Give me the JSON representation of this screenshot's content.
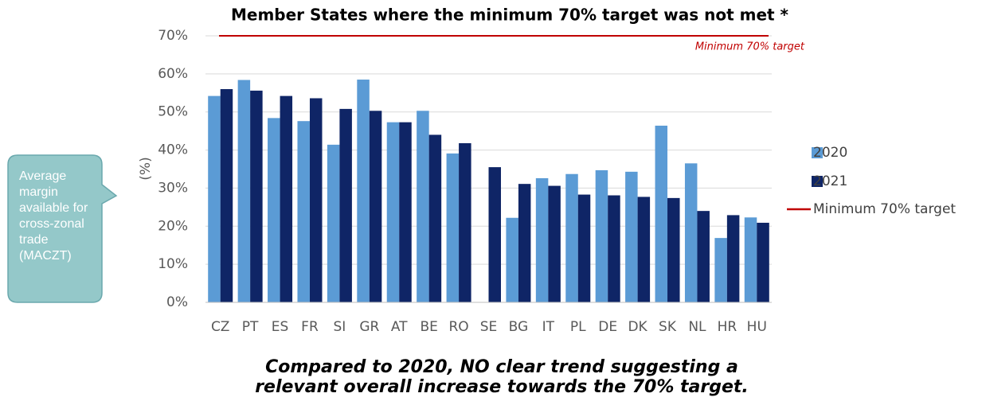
{
  "chart_data": {
    "type": "bar",
    "title": "Member States where the minimum 70% target was not met *",
    "y_label": "(%)",
    "categories": [
      "CZ",
      "PT",
      "ES",
      "FR",
      "SI",
      "GR",
      "AT",
      "BE",
      "RO",
      "SE",
      "BG",
      "IT",
      "PL",
      "DE",
      "DK",
      "SK",
      "NL",
      "HR",
      "HU"
    ],
    "series": [
      {
        "name": "2020",
        "color": "#5b9bd5",
        "values": [
          54.2,
          58.4,
          48.4,
          47.6,
          41.4,
          58.5,
          47.3,
          50.3,
          39.1,
          null,
          22.2,
          32.6,
          33.7,
          34.7,
          34.3,
          46.4,
          36.5,
          16.9,
          22.3
        ]
      },
      {
        "name": "2021",
        "color": "#0f2566",
        "values": [
          56.0,
          55.6,
          54.2,
          53.6,
          50.8,
          50.3,
          47.3,
          44.0,
          41.8,
          35.5,
          31.1,
          30.6,
          28.3,
          28.1,
          27.7,
          27.4,
          24.0,
          22.9,
          20.9
        ]
      }
    ],
    "target": {
      "name": "Minimum 70% target",
      "value": 70,
      "label": "Minimum 70% target",
      "color": "#c00000"
    },
    "ylim": [
      0,
      70
    ],
    "yticks": [
      {
        "value": 0,
        "label": "0%"
      },
      {
        "value": 10,
        "label": "10%"
      },
      {
        "value": 20,
        "label": "20%"
      },
      {
        "value": 30,
        "label": "30%"
      },
      {
        "value": 40,
        "label": "40%"
      },
      {
        "value": 50,
        "label": "50%"
      },
      {
        "value": 60,
        "label": "60%"
      },
      {
        "value": 70,
        "label": "70%"
      }
    ],
    "grid": true,
    "legend": "right"
  },
  "callout": "Average margin available for cross-zonal trade (MACZT)",
  "footnote": [
    "Compared to 2020, NO clear trend suggesting a",
    "relevant overall increase towards the 70% target."
  ]
}
